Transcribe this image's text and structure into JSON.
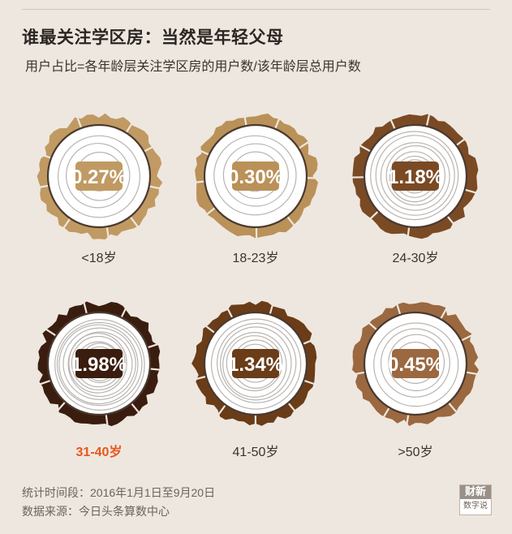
{
  "title": "谁最关注学区房：当然是年轻父母",
  "subtitle": "用户占比=各年龄层关注学区房的用户数/该年龄层总用户数",
  "footer": {
    "period": "统计时间段：2016年1月1日至9月20日",
    "source": "数据来源：今日头条算数中心"
  },
  "logo": {
    "line1": "财新",
    "line2": "数字说"
  },
  "colors": {
    "highlight_label": "#e8571e",
    "label": "#3a3330"
  },
  "chart_data": {
    "type": "bar",
    "categories": [
      "<18岁",
      "18-23岁",
      "24-30岁",
      "31-40岁",
      "41-50岁",
      ">50岁"
    ],
    "values": [
      0.27,
      0.3,
      1.18,
      1.98,
      1.34,
      0.45
    ],
    "value_labels": [
      "0.27%",
      "0.30%",
      "1.18%",
      "1.98%",
      "1.34%",
      "0.45%"
    ],
    "unit": "%",
    "colors": [
      "#c09a62",
      "#ba9158",
      "#7a4a24",
      "#3a1d0e",
      "#6a3c18",
      "#9b6840"
    ],
    "highlight_index": 3,
    "encoding": "tree-ring"
  }
}
